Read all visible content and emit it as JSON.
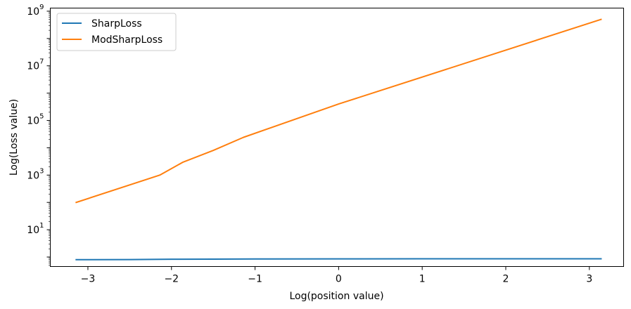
{
  "chart_data": {
    "type": "line",
    "xlabel": "Log(position value)",
    "ylabel": "Log(Loss value)",
    "yscale": "log",
    "xlim": [
      -3.45,
      3.41
    ],
    "ylim": [
      0.45,
      1300000000
    ],
    "x_ticks": [
      -3,
      -2,
      -1,
      0,
      1,
      2,
      3
    ],
    "x_tick_labels": [
      "−3",
      "−2",
      "−1",
      "0",
      "1",
      "2",
      "3"
    ],
    "y_ticks": [
      {
        "value": 10,
        "base": "10",
        "exp": "1"
      },
      {
        "value": 1000,
        "base": "10",
        "exp": "3"
      },
      {
        "value": 100000,
        "base": "10",
        "exp": "5"
      },
      {
        "value": 10000000,
        "base": "10",
        "exp": "7"
      },
      {
        "value": 1000000000,
        "base": "10",
        "exp": "9"
      }
    ],
    "grid": false,
    "legend_position": "top-left",
    "series": [
      {
        "name": "SharpLoss",
        "color": "#1f77b4",
        "x": [
          -3.14,
          -2.5,
          -2.0,
          -1.5,
          -1.0,
          0.0,
          1.0,
          2.0,
          3.14
        ],
        "y": [
          0.8,
          0.81,
          0.83,
          0.84,
          0.85,
          0.855,
          0.86,
          0.86,
          0.86
        ]
      },
      {
        "name": "ModSharpLoss",
        "color": "#ff7f0e",
        "x": [
          -3.14,
          -2.14,
          -1.86,
          -1.5,
          -1.14,
          0.0,
          3.14
        ],
        "y": [
          100,
          1000,
          3000,
          8000,
          24000,
          400000,
          500000000
        ]
      }
    ]
  }
}
